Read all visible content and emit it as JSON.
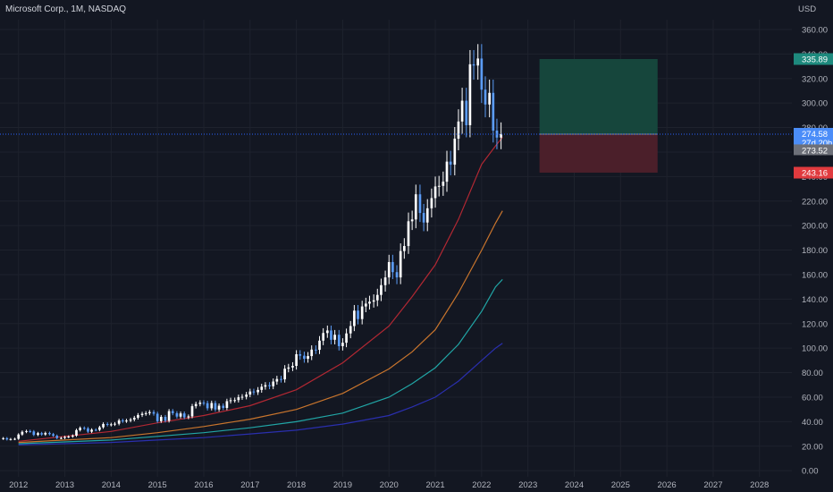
{
  "chart_data": {
    "type": "candlestick",
    "title": "Microsoft Corp., 1M, NASDAQ",
    "currency_label": "USD",
    "interval": "1M",
    "x_ticks": [
      "2012",
      "2013",
      "2014",
      "2015",
      "2016",
      "2017",
      "2018",
      "2019",
      "2020",
      "2021",
      "2022",
      "2023",
      "2024",
      "2025",
      "2026",
      "2027",
      "2028"
    ],
    "y_ticks": [
      "0.00",
      "20.00",
      "40.00",
      "60.00",
      "80.00",
      "100.00",
      "120.00",
      "140.00",
      "160.00",
      "180.00",
      "200.00",
      "220.00",
      "240.00",
      "260.00",
      "280.00",
      "300.00",
      "320.00",
      "340.00",
      "360.00"
    ],
    "xlim": [
      2011.6,
      2028.7
    ],
    "ylim": [
      -5,
      368
    ],
    "grid": true,
    "close_series": [
      [
        2011.58,
        26
      ],
      [
        2011.67,
        26.5
      ],
      [
        2011.75,
        25.5
      ],
      [
        2011.83,
        25.8
      ],
      [
        2011.92,
        26
      ],
      [
        2012.0,
        29.5
      ],
      [
        2012.08,
        31.7
      ],
      [
        2012.17,
        32.3
      ],
      [
        2012.25,
        32
      ],
      [
        2012.33,
        29.2
      ],
      [
        2012.42,
        30.6
      ],
      [
        2012.5,
        29.5
      ],
      [
        2012.58,
        30.8
      ],
      [
        2012.67,
        29.8
      ],
      [
        2012.75,
        28.5
      ],
      [
        2012.83,
        26.6
      ],
      [
        2012.92,
        26.7
      ],
      [
        2013.0,
        27.5
      ],
      [
        2013.08,
        27.8
      ],
      [
        2013.17,
        28.6
      ],
      [
        2013.25,
        33.1
      ],
      [
        2013.33,
        34.9
      ],
      [
        2013.42,
        34.5
      ],
      [
        2013.5,
        31.8
      ],
      [
        2013.58,
        33.4
      ],
      [
        2013.67,
        33.3
      ],
      [
        2013.75,
        35.4
      ],
      [
        2013.83,
        38.1
      ],
      [
        2013.92,
        37.4
      ],
      [
        2014.0,
        37.8
      ],
      [
        2014.08,
        38.3
      ],
      [
        2014.17,
        41
      ],
      [
        2014.25,
        40.4
      ],
      [
        2014.33,
        40.9
      ],
      [
        2014.42,
        41.7
      ],
      [
        2014.5,
        43.2
      ],
      [
        2014.58,
        45.4
      ],
      [
        2014.67,
        46.4
      ],
      [
        2014.75,
        46.9
      ],
      [
        2014.83,
        47.8
      ],
      [
        2014.92,
        46.5
      ],
      [
        2015.0,
        40.4
      ],
      [
        2015.08,
        43.9
      ],
      [
        2015.17,
        40.7
      ],
      [
        2015.25,
        48.6
      ],
      [
        2015.33,
        46.9
      ],
      [
        2015.42,
        44.1
      ],
      [
        2015.5,
        46.7
      ],
      [
        2015.58,
        43.5
      ],
      [
        2015.67,
        44.3
      ],
      [
        2015.75,
        52.6
      ],
      [
        2015.83,
        54.4
      ],
      [
        2015.92,
        55.5
      ],
      [
        2016.0,
        55.1
      ],
      [
        2016.08,
        50.9
      ],
      [
        2016.17,
        55.2
      ],
      [
        2016.25,
        49.9
      ],
      [
        2016.33,
        53
      ],
      [
        2016.42,
        51.2
      ],
      [
        2016.5,
        56.7
      ],
      [
        2016.58,
        57.5
      ],
      [
        2016.67,
        57.6
      ],
      [
        2016.75,
        59.9
      ],
      [
        2016.83,
        60.3
      ],
      [
        2016.92,
        62.1
      ],
      [
        2017.0,
        64.6
      ],
      [
        2017.08,
        64
      ],
      [
        2017.17,
        65.9
      ],
      [
        2017.25,
        68.5
      ],
      [
        2017.33,
        69.8
      ],
      [
        2017.42,
        68.9
      ],
      [
        2017.5,
        72.7
      ],
      [
        2017.58,
        74.8
      ],
      [
        2017.67,
        74.5
      ],
      [
        2017.75,
        83.2
      ],
      [
        2017.83,
        84.2
      ],
      [
        2017.92,
        85.5
      ],
      [
        2018.0,
        95
      ],
      [
        2018.08,
        93.8
      ],
      [
        2018.17,
        91.3
      ],
      [
        2018.25,
        93.5
      ],
      [
        2018.33,
        98.8
      ],
      [
        2018.42,
        98.6
      ],
      [
        2018.5,
        106.1
      ],
      [
        2018.58,
        112.3
      ],
      [
        2018.67,
        114.4
      ],
      [
        2018.75,
        106.8
      ],
      [
        2018.83,
        110.9
      ],
      [
        2018.92,
        101.6
      ],
      [
        2019.0,
        104.4
      ],
      [
        2019.08,
        112
      ],
      [
        2019.17,
        118
      ],
      [
        2019.25,
        130.6
      ],
      [
        2019.33,
        123.7
      ],
      [
        2019.42,
        134
      ],
      [
        2019.5,
        136.3
      ],
      [
        2019.58,
        137.9
      ],
      [
        2019.67,
        139
      ],
      [
        2019.75,
        143.4
      ],
      [
        2019.83,
        151.4
      ],
      [
        2019.92,
        157.7
      ],
      [
        2020.0,
        170.2
      ],
      [
        2020.08,
        162
      ],
      [
        2020.17,
        157.7
      ],
      [
        2020.25,
        179.2
      ],
      [
        2020.33,
        183.3
      ],
      [
        2020.42,
        203.5
      ],
      [
        2020.5,
        205
      ],
      [
        2020.58,
        225.5
      ],
      [
        2020.67,
        210.3
      ],
      [
        2020.75,
        202.5
      ],
      [
        2020.83,
        214.1
      ],
      [
        2020.92,
        222.4
      ],
      [
        2021.0,
        231.9
      ],
      [
        2021.08,
        232.4
      ],
      [
        2021.17,
        235.8
      ],
      [
        2021.25,
        252.2
      ],
      [
        2021.33,
        249.7
      ],
      [
        2021.42,
        270.9
      ],
      [
        2021.5,
        284.9
      ],
      [
        2021.58,
        301.9
      ],
      [
        2021.67,
        281.9
      ],
      [
        2021.75,
        331.6
      ],
      [
        2021.83,
        330.6
      ],
      [
        2021.92,
        336.3
      ],
      [
        2022.0,
        310.9
      ],
      [
        2022.08,
        298.8
      ],
      [
        2022.17,
        308.3
      ],
      [
        2022.25,
        277.5
      ],
      [
        2022.33,
        271.8
      ],
      [
        2022.42,
        274.58
      ]
    ],
    "moving_averages": [
      {
        "color": "#b22833",
        "points": [
          [
            2012.0,
            24
          ],
          [
            2013.0,
            28
          ],
          [
            2014.0,
            32
          ],
          [
            2015.0,
            39
          ],
          [
            2016.0,
            45
          ],
          [
            2017.0,
            53
          ],
          [
            2018.0,
            66
          ],
          [
            2019.0,
            88
          ],
          [
            2020.0,
            118
          ],
          [
            2020.5,
            142
          ],
          [
            2021.0,
            168
          ],
          [
            2021.5,
            205
          ],
          [
            2022.0,
            250
          ],
          [
            2022.3,
            265
          ],
          [
            2022.45,
            272
          ]
        ]
      },
      {
        "color": "#c9752d",
        "points": [
          [
            2012.0,
            23
          ],
          [
            2013.0,
            25
          ],
          [
            2014.0,
            27
          ],
          [
            2015.0,
            31
          ],
          [
            2016.0,
            36
          ],
          [
            2017.0,
            42
          ],
          [
            2018.0,
            50
          ],
          [
            2019.0,
            63
          ],
          [
            2020.0,
            83
          ],
          [
            2020.5,
            97
          ],
          [
            2021.0,
            115
          ],
          [
            2021.5,
            145
          ],
          [
            2022.0,
            180
          ],
          [
            2022.3,
            202
          ],
          [
            2022.45,
            212
          ]
        ]
      },
      {
        "color": "#21a6a6",
        "points": [
          [
            2012.0,
            22
          ],
          [
            2013.0,
            23.5
          ],
          [
            2014.0,
            25
          ],
          [
            2015.0,
            28
          ],
          [
            2016.0,
            31
          ],
          [
            2017.0,
            35
          ],
          [
            2018.0,
            40
          ],
          [
            2019.0,
            47
          ],
          [
            2020.0,
            60
          ],
          [
            2020.5,
            71
          ],
          [
            2021.0,
            84
          ],
          [
            2021.5,
            103
          ],
          [
            2022.0,
            130
          ],
          [
            2022.3,
            150
          ],
          [
            2022.45,
            156
          ]
        ]
      },
      {
        "color": "#2a2fae",
        "points": [
          [
            2012.0,
            21
          ],
          [
            2013.0,
            22
          ],
          [
            2014.0,
            23
          ],
          [
            2015.0,
            25
          ],
          [
            2016.0,
            27
          ],
          [
            2017.0,
            30
          ],
          [
            2018.0,
            33
          ],
          [
            2019.0,
            38
          ],
          [
            2020.0,
            45
          ],
          [
            2020.5,
            52
          ],
          [
            2021.0,
            60
          ],
          [
            2021.5,
            73
          ],
          [
            2022.0,
            90
          ],
          [
            2022.3,
            100
          ],
          [
            2022.45,
            104
          ]
        ]
      }
    ],
    "position": {
      "start_x": 2023.25,
      "end_x": 2025.8,
      "entry": 274.58,
      "target": 335.89,
      "stop": 243.16
    },
    "price_tags": {
      "target": "335.89",
      "current": "274.58",
      "countdown": "27d 20h",
      "previous": "273.52",
      "stop": "243.16"
    },
    "colors": {
      "background": "#131722",
      "grid": "#1e222d",
      "candle_up": "#ffffff",
      "candle_down": "#5b9cf6",
      "current_line": "#2962ff",
      "profit_zone": "#16463c",
      "loss_zone": "#4b1f2a",
      "target_tag": "#1e8a7e",
      "current_tag": "#4b8df8",
      "previous_tag": "#6d7079",
      "stop_tag": "#e03a3e",
      "axis_text": "#b2b5be"
    }
  }
}
